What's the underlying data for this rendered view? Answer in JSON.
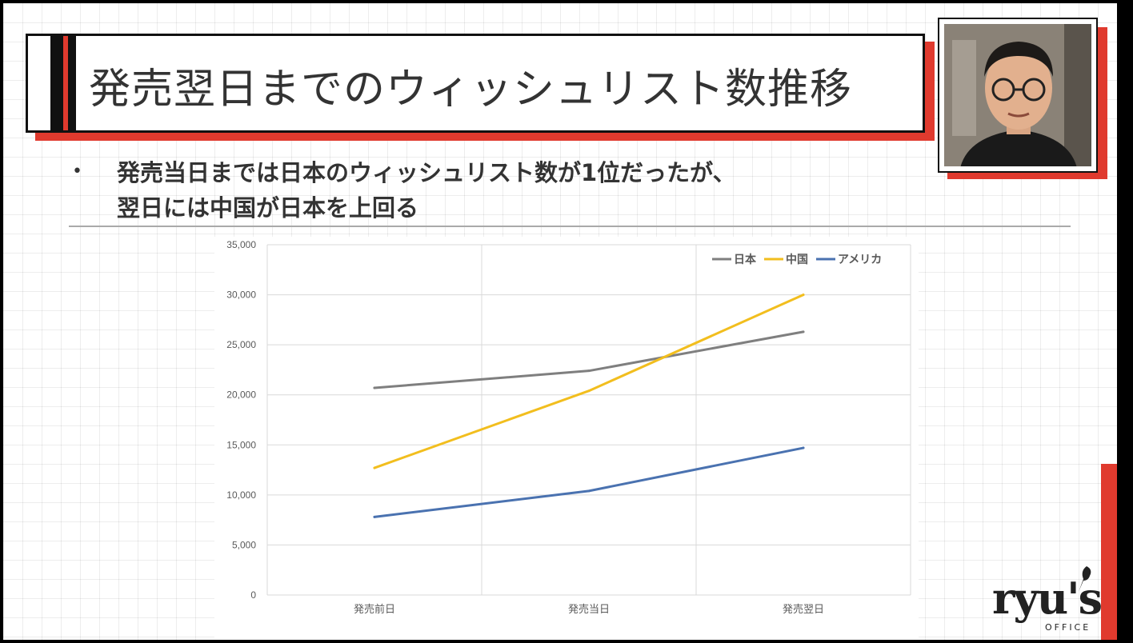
{
  "slide": {
    "title": "発売翌日までのウィッシュリスト数推移",
    "bullet_line1": "発売当日までは日本のウィッシュリスト数が1位だったが、",
    "bullet_line2": "翌日には中国が日本を上回る",
    "logo_text": "ryu's",
    "logo_sub": "OFFICE"
  },
  "chart_data": {
    "type": "line",
    "categories": [
      "発売前日",
      "発売当日",
      "発売翌日"
    ],
    "series": [
      {
        "name": "日本",
        "color": "#7f7f7f",
        "values": [
          20700,
          22400,
          26300
        ]
      },
      {
        "name": "中国",
        "color": "#f2be1e",
        "values": [
          12700,
          20400,
          30000
        ]
      },
      {
        "name": "アメリカ",
        "color": "#4a72b0",
        "values": [
          7800,
          10400,
          14700
        ]
      }
    ],
    "ylim": [
      0,
      35000
    ],
    "yticks": [
      "0",
      "5,000",
      "10,000",
      "15,000",
      "20,000",
      "25,000",
      "30,000",
      "35,000"
    ],
    "ytick_values": [
      0,
      5000,
      10000,
      15000,
      20000,
      25000,
      30000,
      35000
    ],
    "grid": true,
    "legend_position": "top-right"
  }
}
